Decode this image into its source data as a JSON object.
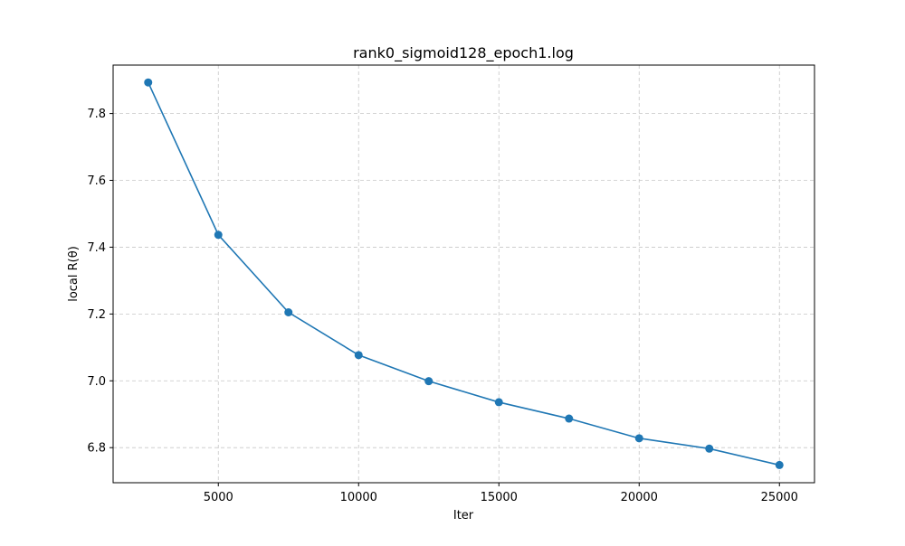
{
  "chart_data": {
    "type": "line",
    "title": "rank0_sigmoid128_epoch1.log",
    "xlabel": "Iter",
    "ylabel": "local R(θ)",
    "xlim": [
      1250,
      26250
    ],
    "ylim": [
      6.695,
      7.945
    ],
    "xticks": [
      5000,
      10000,
      15000,
      20000,
      25000
    ],
    "xtick_labels": [
      "5000",
      "10000",
      "15000",
      "20000",
      "25000"
    ],
    "yticks": [
      6.8,
      7.0,
      7.2,
      7.4,
      7.6,
      7.8
    ],
    "ytick_labels": [
      "6.8",
      "7.0",
      "7.2",
      "7.4",
      "7.6",
      "7.8"
    ],
    "grid": true,
    "grid_style": "dashed",
    "marker": "circle",
    "series": [
      {
        "x": [
          2500,
          5000,
          7500,
          10000,
          12500,
          15000,
          17500,
          20000,
          22500,
          25000
        ],
        "values": [
          7.893,
          7.437,
          7.205,
          7.077,
          6.999,
          6.936,
          6.887,
          6.828,
          6.797,
          6.748
        ],
        "color": "#1f77b4"
      }
    ]
  }
}
